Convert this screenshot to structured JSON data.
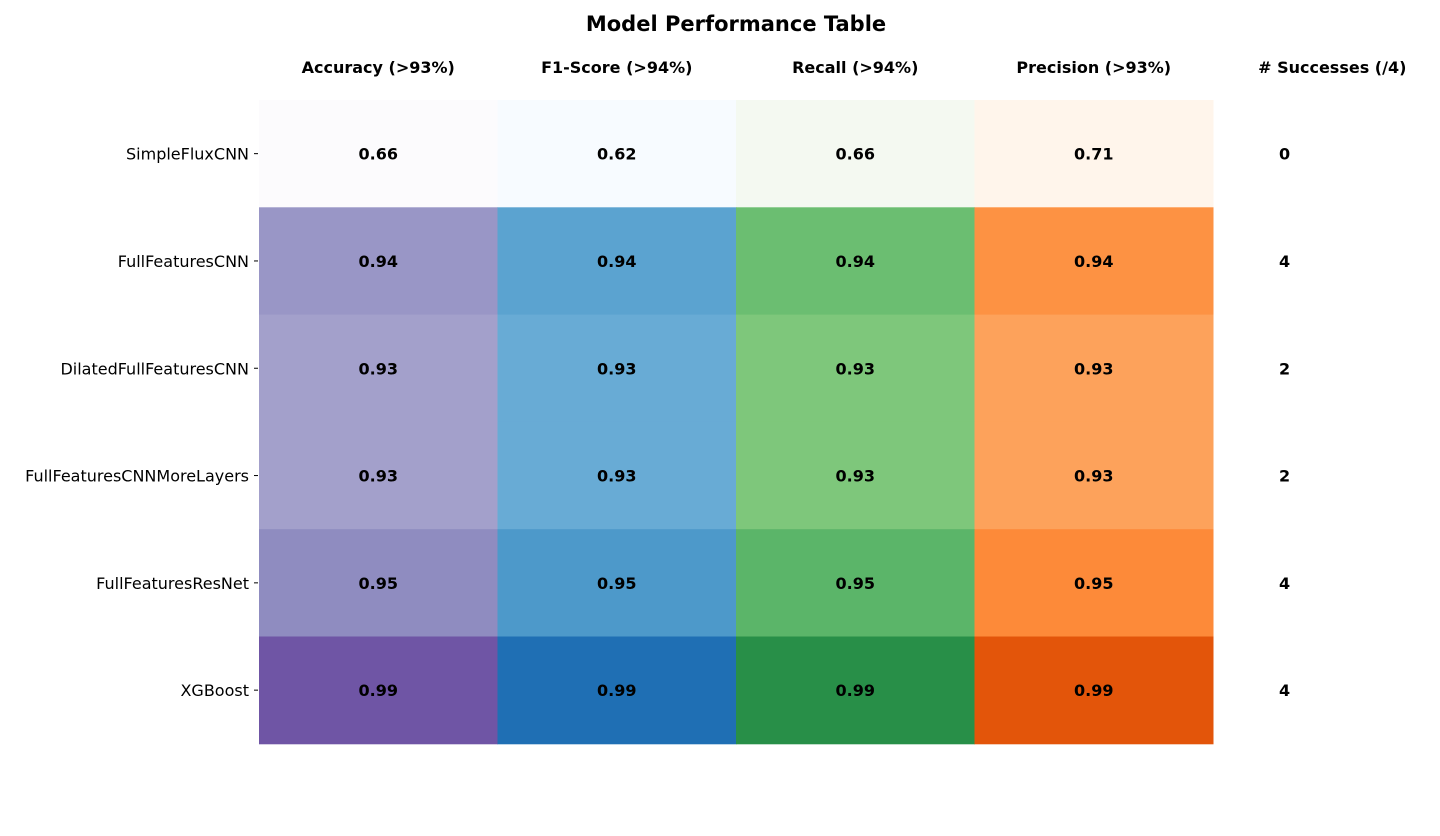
{
  "chart_data": {
    "type": "heatmap",
    "title": "Model Performance Table",
    "columns": [
      "Accuracy (>93%)",
      "F1-Score (>94%)",
      "Recall (>94%)",
      "Precision (>93%)"
    ],
    "successes_header": "# Successes (/4)",
    "rows": [
      "SimpleFluxCNN",
      "FullFeaturesCNN",
      "DilatedFullFeaturesCNN",
      "FullFeaturesCNNMoreLayers",
      "FullFeaturesResNet",
      "XGBoost"
    ],
    "values": [
      [
        0.66,
        0.62,
        0.66,
        0.71
      ],
      [
        0.94,
        0.94,
        0.94,
        0.94
      ],
      [
        0.93,
        0.93,
        0.93,
        0.93
      ],
      [
        0.93,
        0.93,
        0.93,
        0.93
      ],
      [
        0.95,
        0.95,
        0.95,
        0.95
      ],
      [
        0.99,
        0.99,
        0.99,
        0.99
      ]
    ],
    "successes": [
      0,
      4,
      2,
      2,
      4,
      4
    ],
    "colormaps": [
      "Purples",
      "Blues",
      "Greens",
      "Oranges"
    ],
    "cell_colors": [
      [
        "#fcfbfd",
        "#f7fbff",
        "#f4f9f1",
        "#fff5eb"
      ],
      [
        "#9996c6",
        "#5ba3d0",
        "#6bbe71",
        "#fd9243"
      ],
      [
        "#a3a0cb",
        "#68abd5",
        "#7ec77b",
        "#fda25b"
      ],
      [
        "#a3a0cb",
        "#68abd5",
        "#7ec77b",
        "#fda25b"
      ],
      [
        "#8f8cc0",
        "#4d99ca",
        "#5bb569",
        "#fd8a39"
      ],
      [
        "#6f55a5",
        "#1f6fb4",
        "#288f48",
        "#e3550a"
      ]
    ]
  }
}
